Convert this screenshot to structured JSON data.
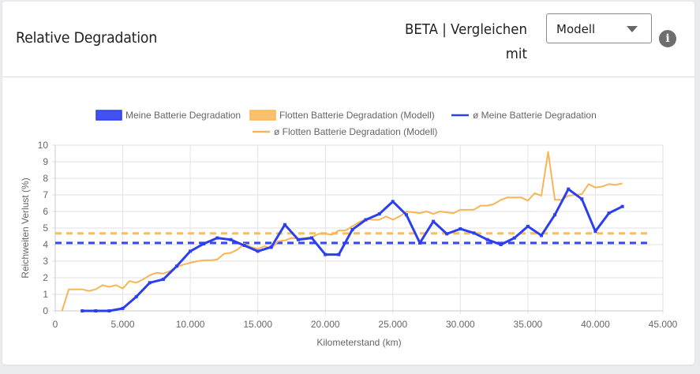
{
  "header": {
    "title": "Relative Degradation",
    "compare_label": "BETA | Vergleichen mit",
    "compare_select": {
      "value": "Modell"
    },
    "info_icon": "info-icon"
  },
  "colors": {
    "mine": "#2c3ff0",
    "fleet": "#f8b555",
    "grid": "#e2e2e2",
    "axis_text": "#666666"
  },
  "chart_data": {
    "type": "line",
    "title": "",
    "xlabel": "Kilometerstand (km)",
    "ylabel": "Reichweiten Verlust (%)",
    "xlim": [
      0,
      45000
    ],
    "ylim": [
      0,
      10
    ],
    "x_ticks": [
      0,
      5000,
      10000,
      15000,
      20000,
      25000,
      30000,
      35000,
      40000,
      45000
    ],
    "x_tick_labels": [
      "0",
      "5.000",
      "10.000",
      "15.000",
      "20.000",
      "25.000",
      "30.000",
      "35.000",
      "40.000",
      "45.000"
    ],
    "y_ticks": [
      0,
      1,
      2,
      3,
      4,
      5,
      6,
      7,
      8,
      9,
      10
    ],
    "grid": true,
    "legend_position": "top",
    "legend": [
      {
        "label": "Meine Batterie Degradation",
        "style": "box",
        "color": "#2c3ff0"
      },
      {
        "label": "Flotten Batterie Degradation (Modell)",
        "style": "box",
        "color": "#f8b555"
      },
      {
        "label": "ø Meine Batterie Degradation",
        "style": "line",
        "color": "#2c3ff0"
      },
      {
        "label": "ø Flotten Batterie Degradation (Modell)",
        "style": "line",
        "color": "#f8b555"
      }
    ],
    "series": [
      {
        "name": "Meine Batterie Degradation",
        "color": "#2c3ff0",
        "markers": true,
        "x": [
          2000,
          3000,
          4000,
          5000,
          6000,
          7000,
          8000,
          9000,
          10000,
          11000,
          12000,
          13000,
          14000,
          15000,
          16000,
          17000,
          18000,
          19000,
          20000,
          21000,
          22000,
          23000,
          24000,
          25000,
          26000,
          27000,
          28000,
          29000,
          30000,
          31000,
          32000,
          33000,
          34000,
          35000,
          36000,
          37000,
          38000,
          39000,
          40000,
          41000,
          42000
        ],
        "values": [
          0,
          0,
          0,
          0.15,
          0.85,
          1.7,
          1.9,
          2.7,
          3.6,
          4.05,
          4.4,
          4.3,
          3.95,
          3.6,
          3.85,
          5.2,
          4.3,
          4.4,
          3.4,
          3.4,
          4.9,
          5.5,
          5.85,
          6.6,
          5.8,
          4.1,
          5.4,
          4.65,
          4.95,
          4.7,
          4.3,
          4.0,
          4.4,
          5.1,
          4.55,
          5.8,
          7.35,
          6.75,
          4.8,
          5.9,
          6.3
        ]
      },
      {
        "name": "Flotten Batterie Degradation (Modell)",
        "color": "#f8b555",
        "markers": false,
        "x": [
          500,
          1000,
          1500,
          2000,
          2500,
          3000,
          3500,
          4000,
          4500,
          5000,
          5500,
          6000,
          6500,
          7000,
          7500,
          8000,
          8500,
          9000,
          9500,
          10000,
          10500,
          11000,
          11500,
          12000,
          12500,
          13000,
          13500,
          14000,
          14500,
          15000,
          15500,
          16000,
          16500,
          17000,
          17500,
          18000,
          18500,
          19000,
          19500,
          20000,
          20500,
          21000,
          21500,
          22000,
          22500,
          23000,
          23500,
          24000,
          24500,
          25000,
          25500,
          26000,
          26500,
          27000,
          27500,
          28000,
          28500,
          29000,
          29500,
          30000,
          30500,
          31000,
          31500,
          32000,
          32500,
          33000,
          33500,
          34000,
          34500,
          35000,
          35500,
          36000,
          36500,
          37000,
          37500,
          38000,
          38500,
          39000,
          39500,
          40000,
          40500,
          41000,
          41500,
          42000
        ],
        "values": [
          0,
          1.3,
          1.3,
          1.3,
          1.2,
          1.3,
          1.55,
          1.45,
          1.55,
          1.35,
          1.8,
          1.7,
          1.9,
          2.15,
          2.3,
          2.25,
          2.4,
          2.65,
          2.8,
          2.9,
          3.0,
          3.05,
          3.05,
          3.1,
          3.45,
          3.5,
          3.7,
          4.05,
          3.85,
          3.75,
          3.9,
          3.75,
          4.2,
          4.25,
          4.4,
          4.35,
          4.4,
          4.45,
          4.65,
          4.65,
          4.6,
          4.85,
          4.85,
          5.1,
          5.35,
          5.55,
          5.5,
          5.5,
          5.7,
          5.5,
          5.7,
          6.0,
          5.95,
          5.9,
          6.0,
          5.85,
          6.0,
          5.95,
          5.9,
          6.1,
          6.1,
          6.1,
          6.35,
          6.35,
          6.45,
          6.7,
          6.85,
          6.85,
          6.85,
          6.65,
          7.1,
          6.95,
          9.6,
          6.7,
          6.7,
          6.95,
          7.0,
          7.05,
          7.65,
          7.45,
          7.5,
          7.65,
          7.6,
          7.7
        ]
      },
      {
        "name": "ø Meine Batterie Degradation",
        "color": "#2c3ff0",
        "dashed": true,
        "x": [
          0,
          44000
        ],
        "values": [
          4.1,
          4.1
        ]
      },
      {
        "name": "ø Flotten Batterie Degradation (Modell)",
        "color": "#f8b555",
        "dashed": true,
        "x": [
          0,
          44000
        ],
        "values": [
          4.68,
          4.68
        ]
      }
    ]
  }
}
